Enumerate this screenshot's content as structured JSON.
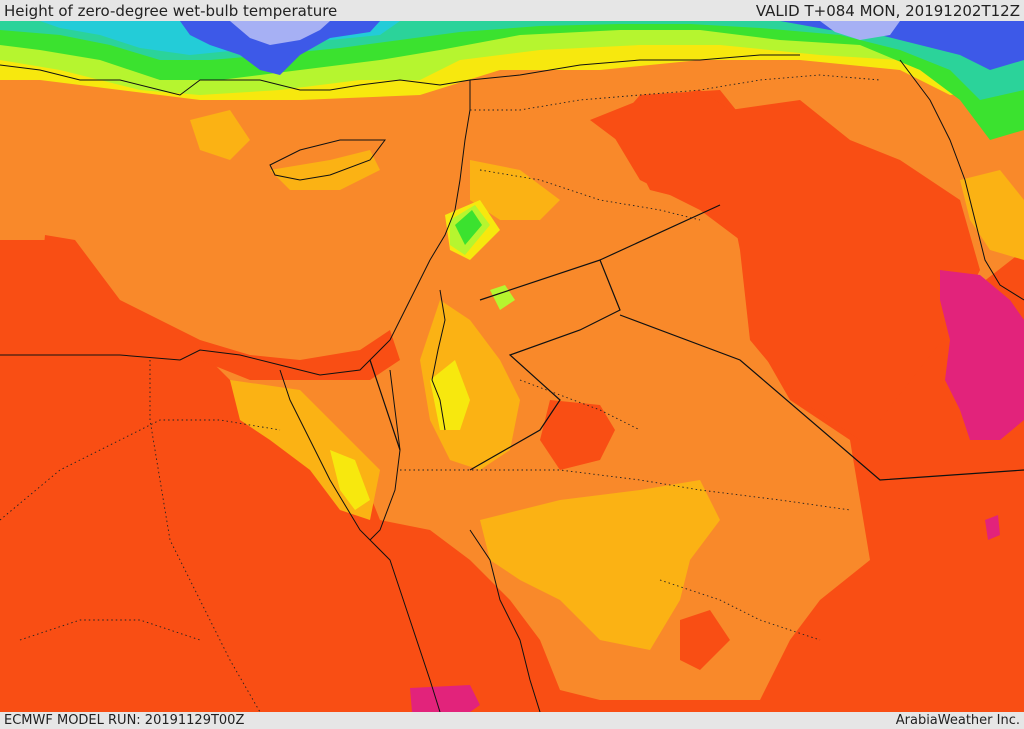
{
  "header": {
    "title": "Height of zero-degree wet-bulb temperature",
    "valid": "VALID T+084 MON, 20191202T12Z"
  },
  "footer": {
    "model_run": "ECMWF MODEL RUN: 20191129T00Z",
    "credit": "ArabiaWeather Inc."
  },
  "map": {
    "colors": {
      "background_red": "#f94e14",
      "orange": "#f9892a",
      "amber": "#fbb214",
      "yellow": "#f7e80e",
      "lime": "#b6f52f",
      "green": "#3be22f",
      "teal": "#2bd39a",
      "cyan": "#23ccd8",
      "blue": "#3d59e8",
      "lavender": "#a6b0f4",
      "magenta": "#e2237b"
    }
  }
}
